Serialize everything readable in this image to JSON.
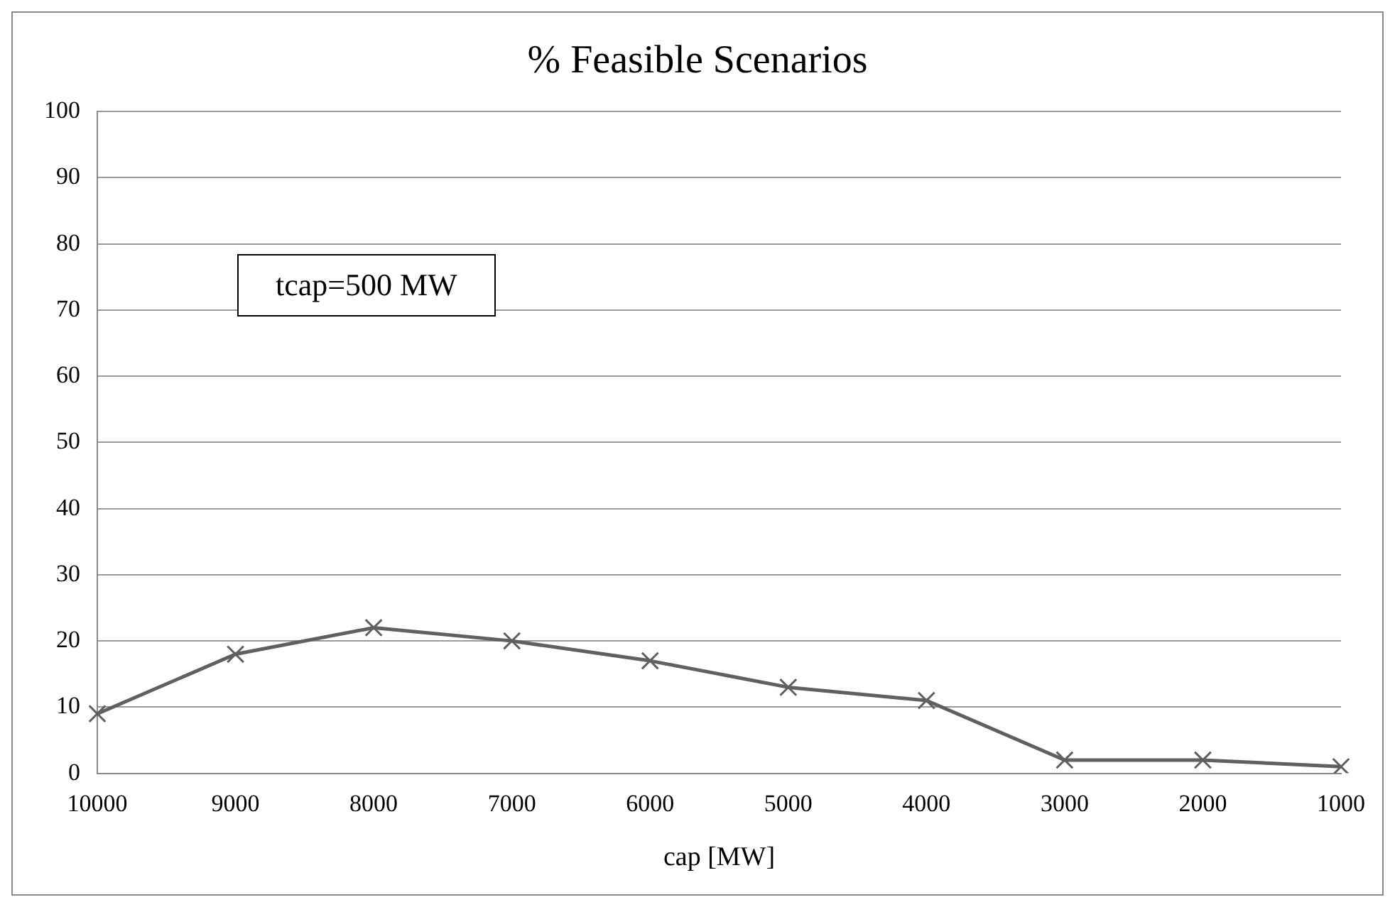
{
  "chart_data": {
    "type": "line",
    "title": "% Feasible Scenarios",
    "xlabel": "cap [MW]",
    "categories": [
      "10000",
      "9000",
      "8000",
      "7000",
      "6000",
      "5000",
      "4000",
      "3000",
      "2000",
      "1000"
    ],
    "series": [
      {
        "color": "#606060",
        "values": [
          9,
          18,
          22,
          20,
          17,
          13,
          11,
          2,
          2,
          1
        ]
      }
    ],
    "ylim": [
      0,
      100
    ],
    "yticks": [
      0,
      10,
      20,
      30,
      40,
      50,
      60,
      70,
      80,
      90,
      100
    ],
    "grid": "y",
    "marker": "cross",
    "line_style": "solid",
    "legend": false,
    "annotations": [
      "tcap=500 MW"
    ]
  }
}
